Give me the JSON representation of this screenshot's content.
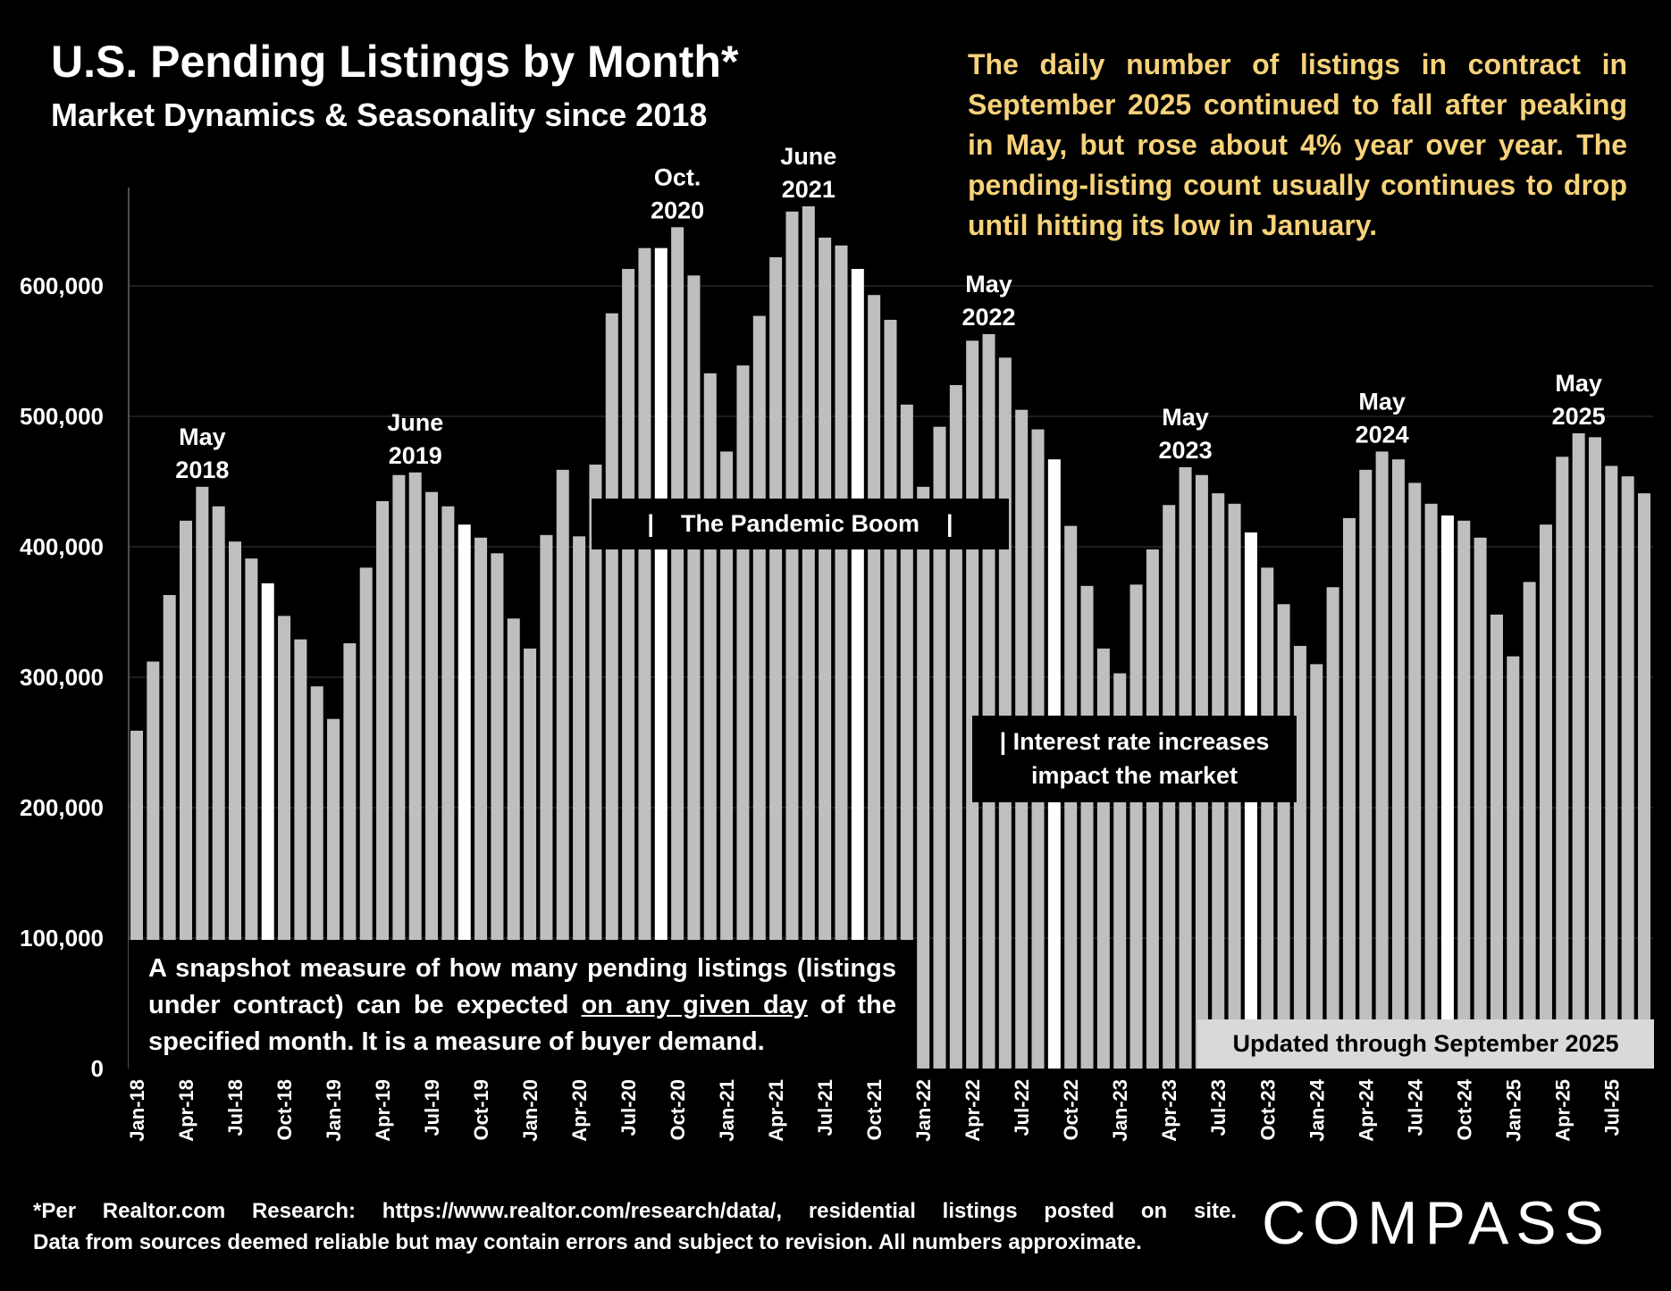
{
  "title": "U.S. Pending Listings by Month*",
  "subtitle": "Market Dynamics & Seasonality since 2018",
  "summary_lines": [
    "The daily number of listings in contract in",
    "September 2025 continued to fall after peaking",
    "in May, but rose about 4% year over year. The",
    "pending-listing count usually continues to drop",
    "until hitting its low in January."
  ],
  "annotations": {
    "snapshot": {
      "before": "A snapshot measure of how many pending listings (listings under contract) can be expected ",
      "underlined": "on any given day",
      "after": " of the specified month. It is a measure of buyer demand."
    },
    "updated": "Updated through September 2025",
    "pandemic": "|    The Pandemic Boom    |",
    "rates_line1": "| Interest rate increases",
    "rates_line2": "impact the market"
  },
  "footnote_lines": [
    "*Per Realtor.com Research:  https://www.realtor.com/research/data/, residential listings posted on site.",
    "Data from sources deemed reliable but may contain errors and subject to revision. All numbers approximate."
  ],
  "logo": "COMPASS",
  "colors": {
    "bar": "#bfbfbf",
    "september_bar": "#ffffff",
    "background": "#000000",
    "summary_text": "#f6d27a"
  },
  "chart_data": {
    "type": "bar",
    "title": "U.S. Pending Listings by Month*",
    "ylim": [
      0,
      650000
    ],
    "yticks": [
      0,
      100000,
      200000,
      300000,
      400000,
      500000,
      600000
    ],
    "ytick_labels": [
      "0",
      "100,000",
      "200,000",
      "300,000",
      "400,000",
      "500,000",
      "600,000"
    ],
    "grid": true,
    "categories": [
      "Jan-18",
      "Feb-18",
      "Mar-18",
      "Apr-18",
      "May-18",
      "Jun-18",
      "Jul-18",
      "Aug-18",
      "Sep-18",
      "Oct-18",
      "Nov-18",
      "Dec-18",
      "Jan-19",
      "Feb-19",
      "Mar-19",
      "Apr-19",
      "May-19",
      "Jun-19",
      "Jul-19",
      "Aug-19",
      "Sep-19",
      "Oct-19",
      "Nov-19",
      "Dec-19",
      "Jan-20",
      "Feb-20",
      "Mar-20",
      "Apr-20",
      "May-20",
      "Jun-20",
      "Jul-20",
      "Aug-20",
      "Sep-20",
      "Oct-20",
      "Nov-20",
      "Dec-20",
      "Jan-21",
      "Feb-21",
      "Mar-21",
      "Apr-21",
      "May-21",
      "Jun-21",
      "Jul-21",
      "Aug-21",
      "Sep-21",
      "Oct-21",
      "Nov-21",
      "Dec-21",
      "Jan-22",
      "Feb-22",
      "Mar-22",
      "Apr-22",
      "May-22",
      "Jun-22",
      "Jul-22",
      "Aug-22",
      "Sep-22",
      "Oct-22",
      "Nov-22",
      "Dec-22",
      "Jan-23",
      "Feb-23",
      "Mar-23",
      "Apr-23",
      "May-23",
      "Jun-23",
      "Jul-23",
      "Aug-23",
      "Sep-23",
      "Oct-23",
      "Nov-23",
      "Dec-23",
      "Jan-24",
      "Feb-24",
      "Mar-24",
      "Apr-24",
      "May-24",
      "Jun-24",
      "Jul-24",
      "Aug-24",
      "Sep-24",
      "Oct-24",
      "Nov-24",
      "Dec-24",
      "Jan-25",
      "Feb-25",
      "Mar-25",
      "Apr-25",
      "May-25",
      "Jun-25",
      "Jul-25",
      "Aug-25",
      "Sep-25"
    ],
    "values": [
      259000,
      312000,
      363000,
      420000,
      446000,
      431000,
      404000,
      391000,
      372000,
      347000,
      329000,
      293000,
      268000,
      326000,
      384000,
      435000,
      455000,
      457000,
      442000,
      431000,
      417000,
      407000,
      395000,
      345000,
      322000,
      409000,
      459000,
      408000,
      463000,
      579000,
      613000,
      629000,
      629000,
      645000,
      608000,
      533000,
      473000,
      539000,
      577000,
      622000,
      657000,
      661000,
      637000,
      631000,
      613000,
      593000,
      574000,
      509000,
      446000,
      492000,
      524000,
      558000,
      563000,
      545000,
      505000,
      490000,
      467000,
      416000,
      370000,
      322000,
      303000,
      371000,
      398000,
      432000,
      461000,
      455000,
      441000,
      433000,
      411000,
      384000,
      356000,
      324000,
      310000,
      369000,
      422000,
      459000,
      473000,
      467000,
      449000,
      433000,
      424000,
      420000,
      407000,
      348000,
      316000,
      373000,
      417000,
      469000,
      487000,
      484000,
      462000,
      454000,
      441000
    ],
    "highlighted_months": [
      "Sep-18",
      "Sep-19",
      "Sep-20",
      "Sep-21",
      "Sep-22",
      "Sep-23",
      "Sep-24"
    ],
    "peak_labels": [
      {
        "category": "May-18",
        "line1": "May",
        "line2": "2018"
      },
      {
        "category": "Jun-19",
        "line1": "June",
        "line2": "2019"
      },
      {
        "category": "Oct-20",
        "line1": "Oct.",
        "line2": "2020"
      },
      {
        "category": "Jun-21",
        "line1": "June",
        "line2": "2021"
      },
      {
        "category": "May-22",
        "line1": "May",
        "line2": "2022"
      },
      {
        "category": "May-23",
        "line1": "May",
        "line2": "2023"
      },
      {
        "category": "May-24",
        "line1": "May",
        "line2": "2024"
      },
      {
        "category": "May-25",
        "line1": "May",
        "line2": "2025"
      }
    ]
  }
}
